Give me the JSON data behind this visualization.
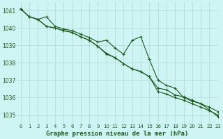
{
  "title": "Graphe pression niveau de la mer (hPa)",
  "background_color": "#cef4f4",
  "grid_color": "#b8dede",
  "line_color": "#1a5c1a",
  "xlim": [
    -0.5,
    23
  ],
  "ylim": [
    1034.5,
    1041.5
  ],
  "yticks": [
    1035,
    1036,
    1037,
    1038,
    1039,
    1040,
    1041
  ],
  "xticks": [
    0,
    1,
    2,
    3,
    4,
    5,
    6,
    7,
    8,
    9,
    10,
    11,
    12,
    13,
    14,
    15,
    16,
    17,
    18,
    19,
    20,
    21,
    22,
    23
  ],
  "series": [
    [
      1041.1,
      1040.65,
      1040.5,
      1040.65,
      1040.1,
      1039.95,
      1039.85,
      1039.65,
      1039.45,
      1039.2,
      1039.3,
      1038.85,
      1038.5,
      1039.3,
      1039.5,
      1038.2,
      1037.0,
      1036.7,
      1036.55,
      1036.0,
      1035.8,
      1035.65,
      1035.3,
      1034.9
    ],
    [
      1041.1,
      1040.65,
      1040.5,
      1040.1,
      1040.0,
      1039.85,
      1039.75,
      1039.5,
      1039.3,
      1038.95,
      1038.5,
      1038.3,
      1037.95,
      1037.65,
      1037.5,
      1037.2,
      1036.35,
      1036.2,
      1036.0,
      1035.85,
      1035.65,
      1035.45,
      1035.25,
      1035.0
    ],
    [
      1041.1,
      1040.65,
      1040.5,
      1040.1,
      1040.0,
      1039.85,
      1039.75,
      1039.5,
      1039.3,
      1038.95,
      1038.55,
      1038.3,
      1037.95,
      1037.65,
      1037.5,
      1037.2,
      1036.55,
      1036.45,
      1036.15,
      1036.05,
      1035.85,
      1035.65,
      1035.45,
      1035.2
    ]
  ]
}
